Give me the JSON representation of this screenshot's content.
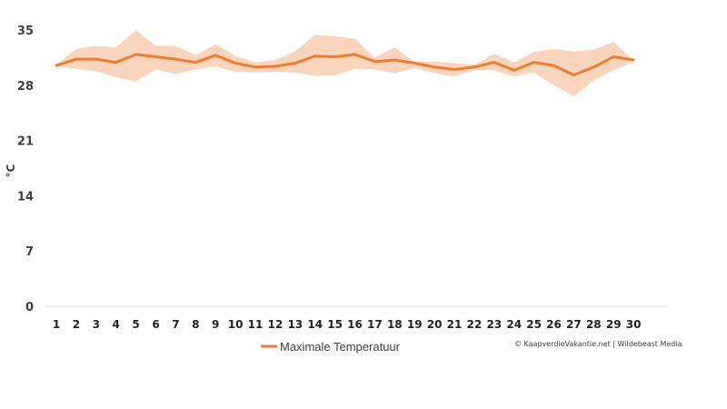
{
  "chart_data": {
    "type": "line",
    "title": "",
    "xlabel": "",
    "ylabel": "°C",
    "x": [
      1,
      2,
      3,
      4,
      5,
      6,
      7,
      8,
      9,
      10,
      11,
      12,
      13,
      14,
      15,
      16,
      17,
      18,
      19,
      20,
      21,
      22,
      23,
      24,
      25,
      26,
      27,
      28,
      29,
      30
    ],
    "x_tick_labels": [
      "1",
      "2",
      "3",
      "4",
      "5",
      "6",
      "7",
      "8",
      "9",
      "10",
      "11",
      "12",
      "13",
      "14",
      "15",
      "16",
      "17",
      "18",
      "19",
      "20",
      "21",
      "22",
      "23",
      "24",
      "25",
      "26",
      "27",
      "28",
      "29",
      "30"
    ],
    "ylim": [
      0,
      35
    ],
    "y_ticks": [
      0,
      7,
      14,
      21,
      28,
      35
    ],
    "grid": false,
    "legend_position": "bottom-left",
    "series": [
      {
        "name": "Maximale Temperatuur",
        "color": "#ed7d31",
        "values": [
          30.5,
          31.3,
          31.3,
          30.9,
          31.9,
          31.6,
          31.3,
          30.9,
          31.8,
          30.8,
          30.3,
          30.4,
          30.8,
          31.7,
          31.6,
          31.9,
          31.0,
          31.2,
          30.8,
          30.3,
          30.0,
          30.3,
          30.9,
          29.9,
          30.9,
          30.5,
          29.3,
          30.3,
          31.6,
          31.2
        ]
      }
    ],
    "band": {
      "color": "#f8cbad",
      "upper": [
        30.6,
        32.6,
        33.0,
        32.8,
        35.0,
        33.0,
        33.0,
        31.8,
        33.2,
        31.7,
        30.9,
        31.2,
        32.3,
        34.4,
        34.2,
        33.9,
        31.5,
        32.8,
        31.0,
        31.0,
        30.8,
        30.6,
        32.0,
        30.9,
        32.2,
        32.6,
        32.3,
        32.5,
        33.5,
        31.2
      ],
      "lower": [
        30.4,
        30.1,
        29.8,
        29.0,
        28.5,
        30.0,
        29.4,
        30.0,
        30.4,
        29.7,
        29.6,
        29.7,
        29.6,
        29.2,
        29.2,
        30.1,
        30.0,
        29.5,
        30.2,
        29.5,
        29.1,
        29.9,
        29.9,
        29.1,
        29.6,
        28.0,
        26.6,
        28.6,
        29.9,
        31.0
      ]
    }
  },
  "credit": "© KaapverdieVakantie.net | Wildebeast Media"
}
